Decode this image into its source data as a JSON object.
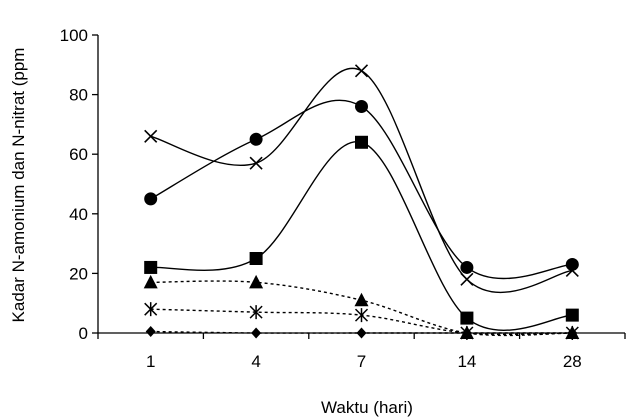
{
  "chart_data": {
    "type": "line",
    "xlabel": "Waktu (hari)",
    "ylabel": "Kadar N-amonium dan N-nitrat (ppm",
    "categories": [
      "1",
      "4",
      "7",
      "14",
      "28"
    ],
    "ylim": [
      0,
      100
    ],
    "yticks": [
      "0",
      "20",
      "40",
      "60",
      "80",
      "100"
    ],
    "grid": false,
    "legend": "none",
    "series": [
      {
        "marker": "x",
        "line_style": "solid",
        "values": [
          66,
          57,
          88,
          18,
          21
        ]
      },
      {
        "marker": "circle",
        "line_style": "solid",
        "values": [
          45,
          65,
          76,
          22,
          23
        ]
      },
      {
        "marker": "square",
        "line_style": "solid",
        "values": [
          22,
          25,
          64,
          5,
          6
        ]
      },
      {
        "marker": "triangle",
        "line_style": "dotted",
        "values": [
          17,
          17,
          11,
          0,
          0
        ]
      },
      {
        "marker": "asterisk",
        "line_style": "dotted",
        "values": [
          8,
          7,
          6,
          0,
          0
        ]
      },
      {
        "marker": "diamond",
        "line_style": "dotted",
        "values": [
          0.5,
          0,
          0,
          0,
          0
        ]
      }
    ],
    "colors": {
      "line": "#000000",
      "axis": "#000000"
    }
  }
}
